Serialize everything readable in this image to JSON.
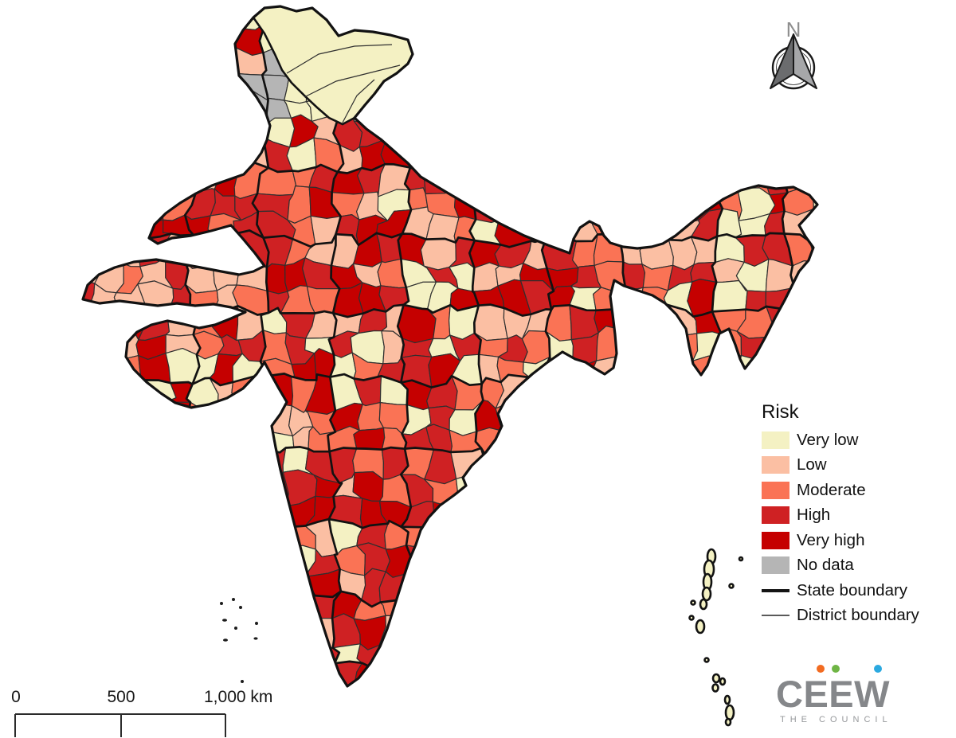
{
  "legend": {
    "title": "Risk",
    "items": [
      {
        "label": "Very low",
        "type": "swatch",
        "color": "#f4f1c3"
      },
      {
        "label": "Low",
        "type": "swatch",
        "color": "#fbbfa3"
      },
      {
        "label": "Moderate",
        "type": "swatch",
        "color": "#fa7355"
      },
      {
        "label": "High",
        "type": "swatch",
        "color": "#cf2123"
      },
      {
        "label": "Very high",
        "type": "swatch",
        "color": "#c50000"
      },
      {
        "label": "No data",
        "type": "swatch",
        "color": "#b5b5b5"
      },
      {
        "label": "State boundary",
        "type": "thick-line",
        "color": "#141414"
      },
      {
        "label": "District boundary",
        "type": "thin-line",
        "color": "#5a5a5a"
      }
    ]
  },
  "scalebar": {
    "labels": [
      "0",
      "500",
      "1,000 km"
    ]
  },
  "north_arrow": {
    "label": "N"
  },
  "logo": {
    "text": "CEEW",
    "subtext": "THE COUNCIL",
    "text_color": "#85878a",
    "subtext_color": "#96989b",
    "dot_colors": [
      "#f26b21",
      "#6fb545",
      "#2ba9e0"
    ]
  },
  "map": {
    "boundary_colors": {
      "state": "#121212",
      "district": "#2f2f2f",
      "outline": "#121212"
    },
    "island_fill": "#f4f1c3"
  }
}
